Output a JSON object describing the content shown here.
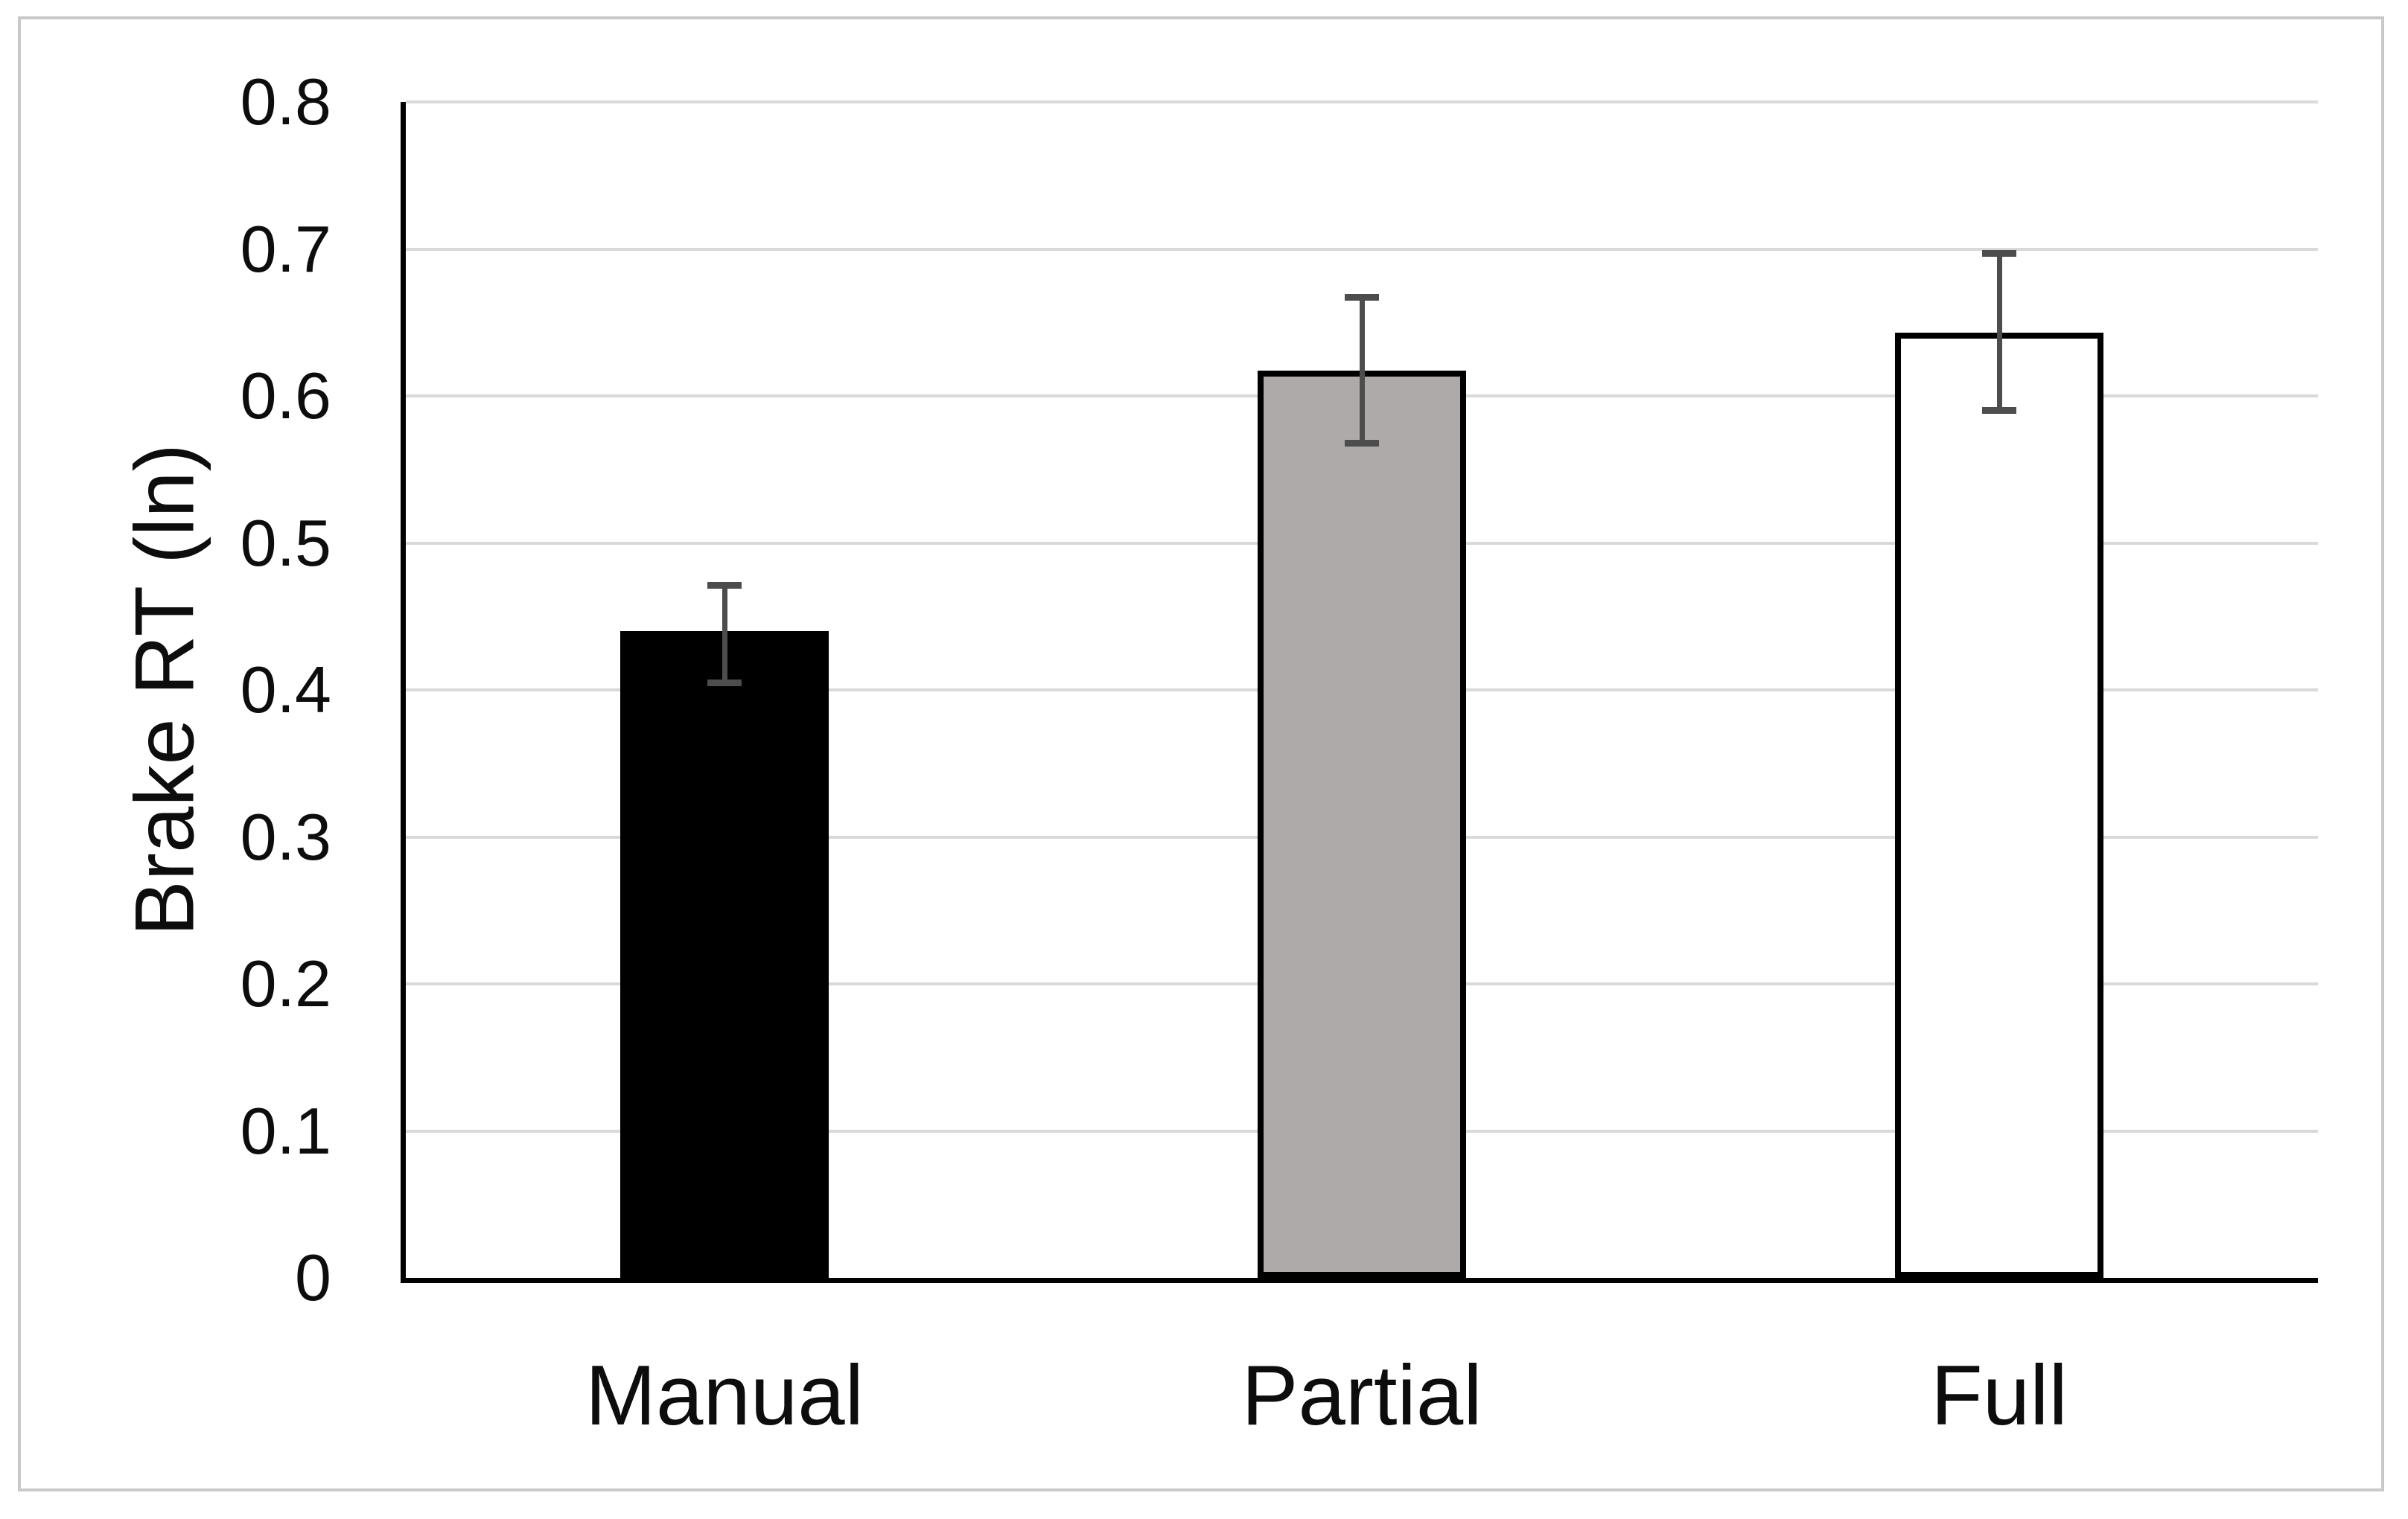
{
  "chart_data": {
    "type": "bar",
    "title": "",
    "xlabel": "",
    "ylabel": "Brake RT (ln)",
    "categories": [
      "Manual",
      "Partial",
      "Full"
    ],
    "values": [
      0.44,
      0.617,
      0.643
    ],
    "error_bars": {
      "upper": [
        0.471,
        0.667,
        0.697
      ],
      "lower": [
        0.405,
        0.568,
        0.59
      ]
    },
    "ylim": [
      0,
      0.8
    ],
    "ytick_labels": [
      "0",
      "0.1",
      "0.2",
      "0.3",
      "0.4",
      "0.5",
      "0.6",
      "0.7",
      "0.8"
    ],
    "grid": true,
    "legend_position": "none",
    "colors": {
      "bar_fills": [
        "#000000",
        "#aeaaaa",
        "#ffffff"
      ],
      "bar_border": "#000000",
      "error_bar": "#4d4d4d",
      "gridline": "#d9d9d9",
      "axis_line": "#000000",
      "text": "#0d0d0d",
      "chart_border": "#c9c9c9",
      "background": "#ffffff"
    }
  }
}
